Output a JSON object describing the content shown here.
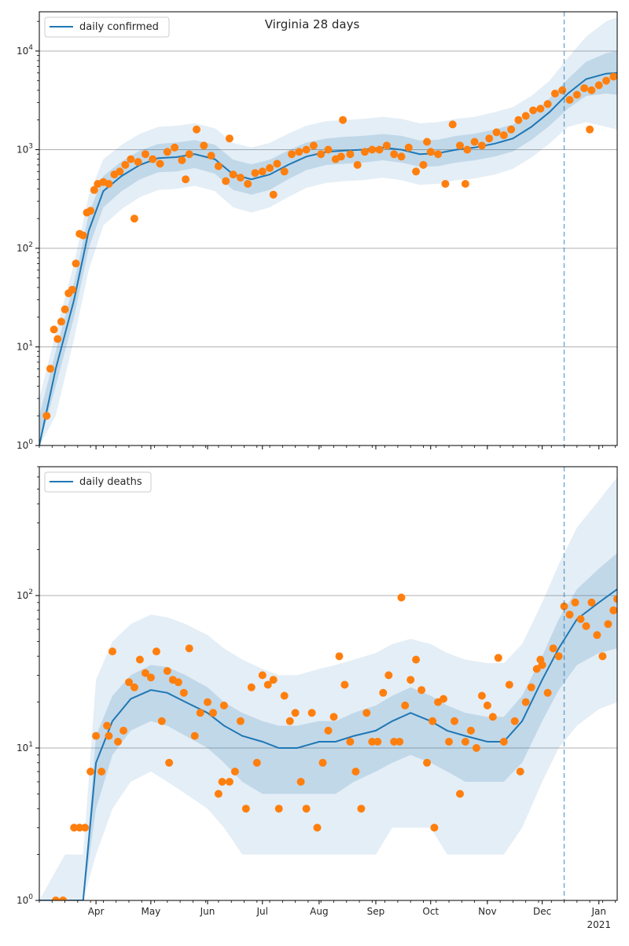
{
  "figure_title": "Virginia 28 days",
  "chart_data": [
    {
      "type": "line",
      "legend": "daily confirmed",
      "legend_placement": "top-left",
      "yscale": "log",
      "ylim": [
        1,
        25000
      ],
      "yticks": [
        1,
        10,
        100,
        1000,
        10000
      ],
      "ytick_labels": [
        "10^0",
        "10^1",
        "10^2",
        "10^3",
        "10^4"
      ],
      "xlim": [
        "2020-03-01",
        "2021-01-11"
      ],
      "forecast_start": "2020-12-13",
      "grid": "horizontal major",
      "series_color": "#1f77b4",
      "points_color": "#ff7f0e",
      "fit": {
        "x": [
          "2020-03-01",
          "2020-03-10",
          "2020-03-20",
          "2020-03-28",
          "2020-04-05",
          "2020-04-15",
          "2020-04-25",
          "2020-05-05",
          "2020-05-15",
          "2020-05-25",
          "2020-06-05",
          "2020-06-15",
          "2020-06-25",
          "2020-07-05",
          "2020-07-15",
          "2020-07-25",
          "2020-08-05",
          "2020-08-15",
          "2020-08-25",
          "2020-09-05",
          "2020-09-15",
          "2020-09-25",
          "2020-10-05",
          "2020-10-15",
          "2020-10-25",
          "2020-11-05",
          "2020-11-15",
          "2020-11-25",
          "2020-12-05",
          "2020-12-15",
          "2020-12-25",
          "2021-01-05",
          "2021-01-11"
        ],
        "median": [
          1,
          6,
          30,
          150,
          380,
          540,
          700,
          820,
          840,
          900,
          800,
          560,
          500,
          560,
          700,
          850,
          950,
          980,
          1000,
          1050,
          1000,
          900,
          920,
          1000,
          1050,
          1150,
          1300,
          1700,
          2400,
          3700,
          5200,
          5900,
          6000
        ],
        "p25": [
          1,
          4,
          20,
          100,
          260,
          380,
          500,
          590,
          600,
          650,
          570,
          390,
          350,
          390,
          500,
          620,
          700,
          720,
          740,
          780,
          740,
          670,
          680,
          740,
          780,
          850,
          960,
          1250,
          1750,
          2600,
          3500,
          3700,
          3600
        ],
        "p75": [
          2,
          9,
          45,
          220,
          540,
          760,
          980,
          1140,
          1180,
          1250,
          1120,
          790,
          710,
          790,
          980,
          1180,
          1300,
          1350,
          1380,
          1440,
          1380,
          1240,
          1260,
          1380,
          1450,
          1600,
          1800,
          2300,
          3300,
          5200,
          7800,
          9500,
          10000
        ],
        "p05": [
          1,
          2,
          12,
          60,
          170,
          250,
          330,
          390,
          400,
          430,
          380,
          260,
          230,
          260,
          330,
          410,
          460,
          480,
          490,
          520,
          490,
          440,
          450,
          490,
          510,
          560,
          640,
          830,
          1150,
          1700,
          1900,
          1700,
          1600
        ],
        "p95": [
          3,
          14,
          70,
          340,
          800,
          1120,
          1450,
          1700,
          1750,
          1850,
          1650,
          1170,
          1050,
          1170,
          1450,
          1750,
          1950,
          2000,
          2050,
          2150,
          2050,
          1850,
          1900,
          2050,
          2150,
          2400,
          2700,
          3500,
          5000,
          8500,
          14000,
          20000,
          22000
        ]
      },
      "points": {
        "x": [
          "2020-03-05",
          "2020-03-07",
          "2020-03-09",
          "2020-03-11",
          "2020-03-13",
          "2020-03-15",
          "2020-03-17",
          "2020-03-19",
          "2020-03-21",
          "2020-03-23",
          "2020-03-25",
          "2020-03-27",
          "2020-03-29",
          "2020-03-31",
          "2020-04-02",
          "2020-04-05",
          "2020-04-08",
          "2020-04-11",
          "2020-04-14",
          "2020-04-17",
          "2020-04-20",
          "2020-04-24",
          "2020-04-28",
          "2020-05-02",
          "2020-05-06",
          "2020-05-10",
          "2020-05-14",
          "2020-05-18",
          "2020-05-22",
          "2020-05-26",
          "2020-05-30",
          "2020-06-03",
          "2020-06-07",
          "2020-06-11",
          "2020-06-15",
          "2020-06-19",
          "2020-06-23",
          "2020-06-27",
          "2020-07-01",
          "2020-07-05",
          "2020-07-09",
          "2020-07-13",
          "2020-07-17",
          "2020-07-21",
          "2020-07-25",
          "2020-07-29",
          "2020-08-02",
          "2020-08-06",
          "2020-08-10",
          "2020-08-14",
          "2020-08-18",
          "2020-08-22",
          "2020-08-26",
          "2020-08-30",
          "2020-09-03",
          "2020-09-07",
          "2020-09-11",
          "2020-09-15",
          "2020-09-19",
          "2020-09-23",
          "2020-09-27",
          "2020-10-01",
          "2020-10-05",
          "2020-10-09",
          "2020-10-13",
          "2020-10-17",
          "2020-10-21",
          "2020-10-25",
          "2020-10-29",
          "2020-11-02",
          "2020-11-06",
          "2020-11-10",
          "2020-11-14",
          "2020-11-18",
          "2020-11-22",
          "2020-11-26",
          "2020-11-30",
          "2020-12-04",
          "2020-12-08",
          "2020-12-12",
          "2020-12-16",
          "2020-12-20",
          "2020-12-24",
          "2020-12-28",
          "2021-01-01",
          "2021-01-05",
          "2021-01-09",
          "2020-04-22",
          "2020-05-20",
          "2020-06-13",
          "2020-07-07",
          "2020-08-13",
          "2020-09-29",
          "2020-10-20",
          "2020-12-27"
        ],
        "y": [
          2,
          6,
          15,
          12,
          18,
          24,
          35,
          38,
          70,
          140,
          135,
          230,
          240,
          390,
          450,
          470,
          450,
          560,
          600,
          700,
          800,
          750,
          900,
          800,
          720,
          950,
          1050,
          780,
          900,
          1600,
          1100,
          870,
          680,
          480,
          560,
          520,
          450,
          580,
          600,
          650,
          720,
          600,
          900,
          950,
          1000,
          1100,
          900,
          1000,
          800,
          2000,
          900,
          700,
          950,
          1000,
          1000,
          1100,
          900,
          850,
          1050,
          600,
          700,
          950,
          900,
          450,
          1800,
          1100,
          1000,
          1200,
          1100,
          1300,
          1500,
          1400,
          1600,
          2000,
          2200,
          2500,
          2600,
          2900,
          3700,
          4000,
          3200,
          3600,
          4200,
          4000,
          4500,
          5000,
          5500,
          200,
          500,
          1300,
          350,
          850,
          1200,
          450,
          1600
        ]
      }
    },
    {
      "type": "line",
      "legend": "daily deaths",
      "legend_placement": "top-left",
      "yscale": "log",
      "ylim": [
        1,
        700
      ],
      "yticks": [
        1,
        10,
        100
      ],
      "ytick_labels": [
        "10^0",
        "10^1",
        "10^2"
      ],
      "xlim": [
        "2020-03-01",
        "2021-01-11"
      ],
      "xtick_labels": [
        "Apr",
        "May",
        "Jun",
        "Jul",
        "Aug",
        "Sep",
        "Oct",
        "Nov",
        "Dec",
        "Jan"
      ],
      "xtick_dates": [
        "2020-04-01",
        "2020-05-01",
        "2020-06-01",
        "2020-07-01",
        "2020-08-01",
        "2020-09-01",
        "2020-10-01",
        "2020-11-01",
        "2020-12-01",
        "2021-01-01"
      ],
      "year_label": "2021",
      "forecast_start": "2020-12-13",
      "grid": "horizontal major",
      "series_color": "#1f77b4",
      "points_color": "#ff7f0e",
      "fit": {
        "x": [
          "2020-03-01",
          "2020-03-15",
          "2020-03-25",
          "2020-04-01",
          "2020-04-10",
          "2020-04-20",
          "2020-05-01",
          "2020-05-10",
          "2020-05-20",
          "2020-06-01",
          "2020-06-10",
          "2020-06-20",
          "2020-07-01",
          "2020-07-10",
          "2020-07-20",
          "2020-08-01",
          "2020-08-10",
          "2020-08-20",
          "2020-09-01",
          "2020-09-10",
          "2020-09-20",
          "2020-10-01",
          "2020-10-10",
          "2020-10-20",
          "2020-11-01",
          "2020-11-10",
          "2020-11-20",
          "2020-12-01",
          "2020-12-10",
          "2020-12-20",
          "2021-01-01",
          "2021-01-11"
        ],
        "median": [
          1,
          1,
          1,
          8,
          15,
          21,
          24,
          23,
          20,
          17,
          14,
          12,
          11,
          10,
          10,
          11,
          11,
          12,
          13,
          15,
          17,
          15,
          13,
          12,
          11,
          11,
          15,
          28,
          45,
          70,
          90,
          110
        ],
        "p25": [
          1,
          1,
          1,
          4,
          9,
          13,
          15,
          14,
          12,
          10,
          8,
          6,
          5,
          5,
          5,
          5,
          5,
          6,
          7,
          8,
          9,
          8,
          7,
          6,
          6,
          6,
          8,
          15,
          24,
          35,
          42,
          45
        ],
        "p75": [
          1,
          1,
          1,
          12,
          22,
          30,
          35,
          34,
          30,
          25,
          20,
          17,
          15,
          14,
          14,
          15,
          15,
          17,
          19,
          22,
          25,
          22,
          19,
          17,
          16,
          16,
          22,
          40,
          70,
          110,
          150,
          190
        ],
        "p05": [
          1,
          1,
          1,
          2,
          4,
          6,
          7,
          6,
          5,
          4,
          3,
          2,
          2,
          2,
          2,
          2,
          2,
          2,
          2,
          3,
          3,
          3,
          2,
          2,
          2,
          2,
          3,
          6,
          10,
          14,
          18,
          20
        ],
        "p95": [
          1,
          2,
          2,
          28,
          50,
          65,
          75,
          72,
          65,
          55,
          45,
          38,
          33,
          30,
          30,
          33,
          35,
          38,
          42,
          48,
          52,
          48,
          42,
          38,
          36,
          36,
          48,
          90,
          160,
          280,
          420,
          600
        ]
      },
      "points": {
        "x": [
          "2020-03-10",
          "2020-03-14",
          "2020-03-20",
          "2020-03-23",
          "2020-03-26",
          "2020-03-29",
          "2020-04-01",
          "2020-04-04",
          "2020-04-07",
          "2020-04-10",
          "2020-04-13",
          "2020-04-16",
          "2020-04-19",
          "2020-04-22",
          "2020-04-25",
          "2020-04-28",
          "2020-05-01",
          "2020-05-04",
          "2020-05-07",
          "2020-05-10",
          "2020-05-13",
          "2020-05-16",
          "2020-05-19",
          "2020-05-22",
          "2020-05-25",
          "2020-05-28",
          "2020-06-01",
          "2020-06-04",
          "2020-06-07",
          "2020-06-10",
          "2020-06-13",
          "2020-06-16",
          "2020-06-19",
          "2020-06-22",
          "2020-06-25",
          "2020-06-28",
          "2020-07-01",
          "2020-07-04",
          "2020-07-07",
          "2020-07-10",
          "2020-07-13",
          "2020-07-16",
          "2020-07-19",
          "2020-07-22",
          "2020-07-25",
          "2020-07-28",
          "2020-07-31",
          "2020-08-03",
          "2020-08-06",
          "2020-08-09",
          "2020-08-12",
          "2020-08-15",
          "2020-08-18",
          "2020-08-21",
          "2020-08-24",
          "2020-08-27",
          "2020-08-30",
          "2020-09-02",
          "2020-09-05",
          "2020-09-08",
          "2020-09-11",
          "2020-09-14",
          "2020-09-17",
          "2020-09-20",
          "2020-09-23",
          "2020-09-26",
          "2020-09-29",
          "2020-10-02",
          "2020-10-05",
          "2020-10-08",
          "2020-10-11",
          "2020-10-14",
          "2020-10-17",
          "2020-10-20",
          "2020-10-23",
          "2020-10-26",
          "2020-10-29",
          "2020-11-01",
          "2020-11-04",
          "2020-11-07",
          "2020-11-10",
          "2020-11-13",
          "2020-11-16",
          "2020-11-19",
          "2020-11-22",
          "2020-11-25",
          "2020-11-28",
          "2020-12-01",
          "2020-12-04",
          "2020-12-07",
          "2020-12-10",
          "2020-12-13",
          "2020-12-16",
          "2020-12-19",
          "2020-12-22",
          "2020-12-25",
          "2020-12-28",
          "2020-12-31",
          "2021-01-03",
          "2021-01-06",
          "2021-01-09",
          "2020-04-08",
          "2020-05-11",
          "2020-06-09",
          "2020-09-15",
          "2020-10-03",
          "2020-11-30",
          "2021-01-11"
        ],
        "y": [
          1,
          1,
          3,
          3,
          3,
          7,
          12,
          7,
          14,
          43,
          11,
          13,
          27,
          25,
          38,
          31,
          29,
          43,
          15,
          32,
          28,
          27,
          23,
          45,
          12,
          17,
          20,
          17,
          5,
          19,
          6,
          7,
          15,
          4,
          25,
          8,
          30,
          26,
          28,
          4,
          22,
          15,
          17,
          6,
          4,
          17,
          3,
          8,
          13,
          16,
          40,
          26,
          11,
          7,
          4,
          17,
          11,
          11,
          23,
          30,
          11,
          11,
          19,
          28,
          38,
          24,
          8,
          15,
          20,
          21,
          11,
          15,
          5,
          11,
          13,
          10,
          22,
          19,
          16,
          39,
          11,
          26,
          15,
          7,
          20,
          25,
          33,
          35,
          23,
          45,
          40,
          85,
          75,
          90,
          70,
          63,
          90,
          55,
          40,
          65,
          80,
          12,
          8,
          6,
          97,
          3,
          38,
          95
        ]
      }
    }
  ]
}
